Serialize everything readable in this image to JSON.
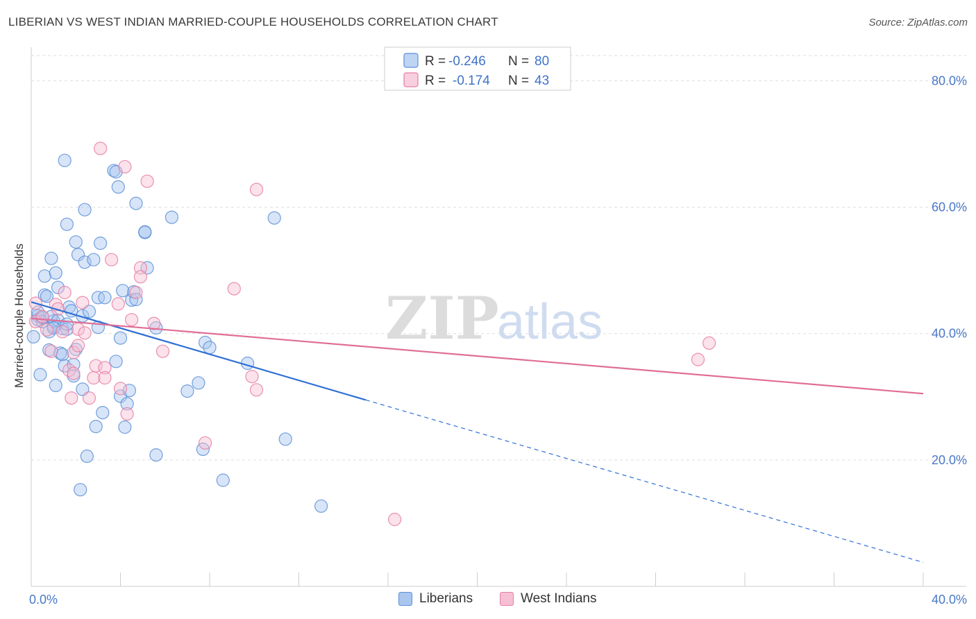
{
  "chart_data": {
    "type": "scatter",
    "title": "LIBERIAN VS WEST INDIAN MARRIED-COUPLE HOUSEHOLDS CORRELATION CHART",
    "source": "Source: ZipAtlas.com",
    "ylabel": "Married-couple Households",
    "xlabel": "",
    "xlim": [
      0,
      40
    ],
    "ylim": [
      0,
      84
    ],
    "x_tick_labels": [
      {
        "value": 0,
        "label": "0.0%"
      },
      {
        "value": 40,
        "label": "40.0%"
      }
    ],
    "y_tick_labels": [
      {
        "value": 20,
        "label": "20.0%"
      },
      {
        "value": 40,
        "label": "40.0%"
      },
      {
        "value": 60,
        "label": "60.0%"
      },
      {
        "value": 80,
        "label": "80.0%"
      }
    ],
    "grid": true,
    "watermark": "ZIPatlas",
    "legend": {
      "position": "top-center",
      "entries": [
        {
          "r_label": "R =",
          "r_value": "-0.246",
          "n_label": "N =",
          "n_value": "80"
        },
        {
          "r_label": "R =",
          "r_value": "-0.174",
          "n_label": "N =",
          "n_value": "43"
        }
      ]
    },
    "series": [
      {
        "name": "Liberians",
        "color": "#5b8fd6",
        "fill": "#a9c6ef",
        "trend": {
          "x0": 0,
          "y0": 45.0,
          "x1": 15,
          "y1": 29.5,
          "dash_to_x": 40,
          "dash_to_y": 3.8
        },
        "points": [
          [
            0.1,
            39.5
          ],
          [
            0.3,
            42.8
          ],
          [
            0.3,
            42.2
          ],
          [
            0.3,
            43.4
          ],
          [
            0.4,
            33.5
          ],
          [
            0.5,
            41.9
          ],
          [
            0.6,
            46.1
          ],
          [
            0.6,
            49.1
          ],
          [
            0.7,
            45.9
          ],
          [
            0.8,
            37.4
          ],
          [
            0.8,
            40.3
          ],
          [
            0.9,
            51.9
          ],
          [
            1.0,
            42.0
          ],
          [
            1.0,
            41.2
          ],
          [
            1.1,
            31.8
          ],
          [
            1.1,
            49.6
          ],
          [
            1.2,
            47.3
          ],
          [
            1.3,
            36.9
          ],
          [
            1.4,
            36.7
          ],
          [
            1.4,
            40.8
          ],
          [
            1.5,
            67.4
          ],
          [
            1.5,
            34.9
          ],
          [
            1.6,
            57.3
          ],
          [
            1.6,
            40.7
          ],
          [
            1.7,
            44.2
          ],
          [
            1.8,
            43.6
          ],
          [
            1.9,
            35.1
          ],
          [
            1.9,
            33.3
          ],
          [
            2.0,
            54.5
          ],
          [
            2.0,
            37.5
          ],
          [
            2.1,
            52.5
          ],
          [
            2.3,
            42.8
          ],
          [
            2.3,
            31.2
          ],
          [
            2.4,
            51.3
          ],
          [
            2.4,
            59.6
          ],
          [
            2.5,
            20.6
          ],
          [
            2.6,
            43.5
          ],
          [
            2.8,
            51.7
          ],
          [
            2.9,
            25.3
          ],
          [
            3.0,
            41.0
          ],
          [
            3.0,
            45.7
          ],
          [
            3.1,
            54.3
          ],
          [
            3.2,
            27.5
          ],
          [
            3.3,
            45.7
          ],
          [
            3.8,
            35.6
          ],
          [
            3.7,
            65.8
          ],
          [
            3.8,
            65.6
          ],
          [
            3.9,
            63.2
          ],
          [
            4.0,
            30.1
          ],
          [
            4.0,
            39.3
          ],
          [
            4.1,
            46.8
          ],
          [
            4.2,
            25.2
          ],
          [
            4.3,
            28.9
          ],
          [
            4.4,
            31.0
          ],
          [
            4.5,
            45.3
          ],
          [
            4.6,
            46.6
          ],
          [
            4.7,
            60.6
          ],
          [
            4.7,
            45.4
          ],
          [
            5.1,
            56.0
          ],
          [
            5.1,
            56.1
          ],
          [
            5.2,
            50.4
          ],
          [
            5.6,
            20.8
          ],
          [
            5.6,
            40.9
          ],
          [
            6.3,
            58.4
          ],
          [
            7.0,
            30.9
          ],
          [
            7.5,
            32.2
          ],
          [
            7.7,
            21.7
          ],
          [
            7.8,
            38.6
          ],
          [
            8.0,
            37.8
          ],
          [
            8.6,
            16.8
          ],
          [
            9.7,
            35.3
          ],
          [
            10.9,
            58.3
          ],
          [
            11.4,
            23.3
          ],
          [
            13.0,
            12.7
          ],
          [
            2.2,
            15.3
          ],
          [
            0.5,
            42.5
          ],
          [
            0.9,
            42.7
          ],
          [
            1.2,
            42.1
          ],
          [
            1.6,
            41.5
          ],
          [
            1.0,
            40.9
          ]
        ]
      },
      {
        "name": "West Indians",
        "color": "#e57ea3",
        "fill": "#f6bfd3",
        "trend": {
          "x0": 0,
          "y0": 42.4,
          "x1": 40,
          "y1": 30.5
        },
        "points": [
          [
            0.2,
            44.8
          ],
          [
            0.2,
            41.9
          ],
          [
            0.5,
            42.7
          ],
          [
            0.7,
            40.6
          ],
          [
            0.9,
            37.2
          ],
          [
            1.1,
            44.6
          ],
          [
            1.2,
            43.9
          ],
          [
            1.4,
            40.3
          ],
          [
            1.5,
            46.5
          ],
          [
            1.7,
            34.2
          ],
          [
            1.8,
            29.8
          ],
          [
            1.9,
            33.7
          ],
          [
            1.9,
            37.0
          ],
          [
            2.1,
            40.7
          ],
          [
            2.1,
            38.1
          ],
          [
            2.3,
            44.9
          ],
          [
            2.4,
            40.1
          ],
          [
            2.6,
            29.8
          ],
          [
            2.8,
            33.0
          ],
          [
            2.9,
            34.9
          ],
          [
            3.1,
            69.3
          ],
          [
            3.3,
            34.6
          ],
          [
            3.3,
            33.0
          ],
          [
            3.6,
            51.7
          ],
          [
            3.9,
            44.7
          ],
          [
            4.0,
            31.3
          ],
          [
            4.2,
            66.4
          ],
          [
            4.3,
            27.3
          ],
          [
            4.5,
            42.2
          ],
          [
            4.7,
            46.5
          ],
          [
            4.9,
            50.4
          ],
          [
            4.9,
            49.0
          ],
          [
            5.2,
            64.1
          ],
          [
            5.5,
            41.6
          ],
          [
            5.9,
            37.2
          ],
          [
            7.8,
            22.7
          ],
          [
            9.1,
            47.1
          ],
          [
            9.9,
            33.2
          ],
          [
            10.1,
            31.1
          ],
          [
            10.1,
            62.8
          ],
          [
            16.3,
            10.6
          ],
          [
            29.9,
            35.9
          ],
          [
            30.4,
            38.5
          ]
        ]
      }
    ]
  },
  "bottom_legend": [
    {
      "label": "Liberians",
      "color": "#a9c6ef",
      "border": "#5b8fd6"
    },
    {
      "label": "West Indians",
      "color": "#f6bfd3",
      "border": "#e57ea3"
    }
  ]
}
